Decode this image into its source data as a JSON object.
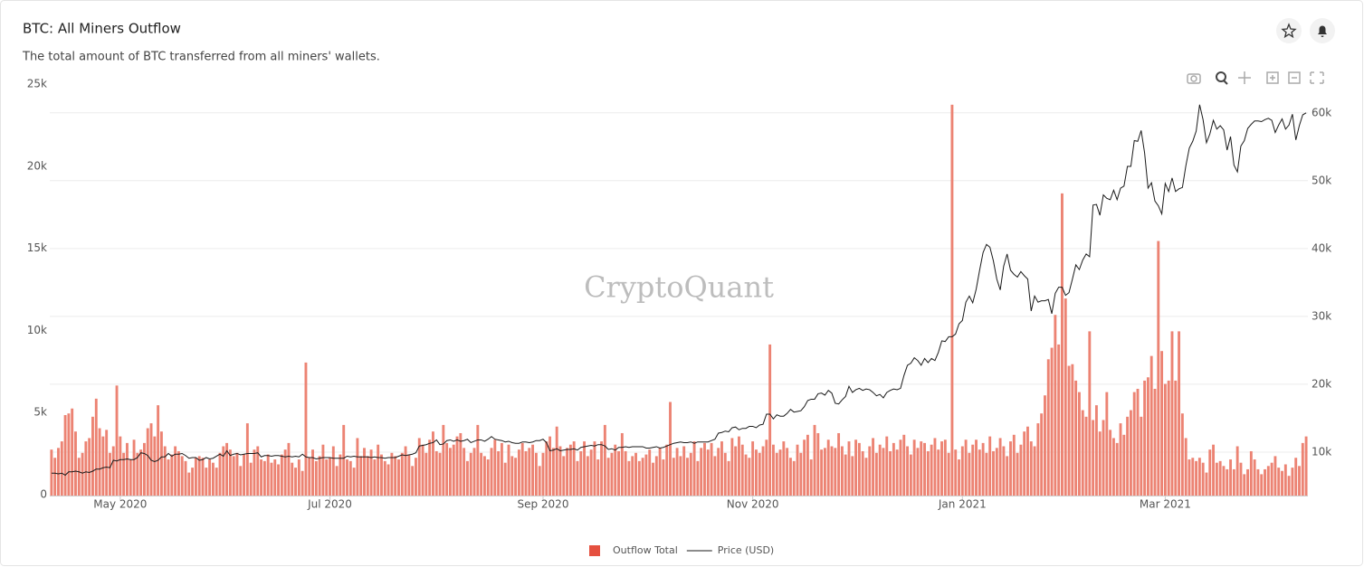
{
  "chart_data": {
    "type": "combo",
    "title": "BTC: All Miners Outflow",
    "subtitle": "The total amount of BTC transferred from all miners' wallets.",
    "watermark": "CryptoQuant",
    "legend": "bottom",
    "grid": true,
    "categories": [
      null,
      null,
      null,
      null,
      null,
      null,
      null,
      null,
      null,
      null,
      null,
      null,
      null,
      null,
      null,
      null,
      null,
      null,
      null,
      null,
      "May 2020",
      null,
      null,
      null,
      null,
      null,
      null,
      null,
      null,
      null,
      null,
      null,
      null,
      null,
      null,
      null,
      null,
      null,
      null,
      null,
      null,
      null,
      null,
      null,
      null,
      null,
      null,
      null,
      null,
      null,
      null,
      null,
      null,
      null,
      null,
      null,
      null,
      null,
      null,
      null,
      null,
      null,
      null,
      null,
      null,
      null,
      null,
      null,
      null,
      null,
      null,
      null,
      null,
      null,
      null,
      null,
      null,
      null,
      null,
      null,
      null,
      "Jul 2020",
      null,
      null,
      null,
      null,
      null,
      null,
      null,
      null,
      null,
      null,
      null,
      null,
      null,
      null,
      null,
      null,
      null,
      null,
      null,
      null,
      null,
      null,
      null,
      null,
      null,
      null,
      null,
      null,
      null,
      null,
      null,
      null,
      null,
      null,
      null,
      null,
      null,
      null,
      null,
      null,
      null,
      null,
      null,
      null,
      null,
      null,
      null,
      null,
      null,
      null,
      null,
      null,
      null,
      null,
      null,
      null,
      null,
      null,
      null,
      null,
      null,
      "Sep 2020",
      null,
      null,
      null,
      null,
      null,
      null,
      null,
      null,
      null,
      null,
      null,
      null,
      null,
      null,
      null,
      null,
      null,
      null,
      null,
      null,
      null,
      null,
      null,
      null,
      null,
      null,
      null,
      null,
      null,
      null,
      null,
      null,
      null,
      null,
      null,
      null,
      null,
      null,
      null,
      null,
      null,
      null,
      null,
      null,
      null,
      null,
      null,
      null,
      null,
      null,
      null,
      null,
      null,
      null,
      null,
      null,
      null,
      null,
      null,
      null,
      "Nov 2020",
      null,
      null,
      null,
      null,
      null,
      null,
      null,
      null,
      null,
      null,
      null,
      null,
      null,
      null,
      null,
      null,
      null,
      null,
      null,
      null,
      null,
      null,
      null,
      null,
      null,
      null,
      null,
      null,
      null,
      null,
      null,
      null,
      null,
      null,
      null,
      null,
      null,
      null,
      null,
      null,
      null,
      null,
      null,
      null,
      null,
      null,
      null,
      null,
      null,
      null,
      null,
      null,
      null,
      null,
      null,
      null,
      null,
      null,
      null,
      null,
      "Jan 2021",
      null,
      null,
      null,
      null,
      null,
      null,
      null,
      null,
      null,
      null,
      null,
      null,
      null,
      null,
      null,
      null,
      null,
      null,
      null,
      null,
      null,
      null,
      null,
      null,
      null,
      null,
      null,
      null,
      null,
      null,
      null,
      null,
      null,
      null,
      null,
      null,
      null,
      null,
      null,
      null,
      null,
      null,
      null,
      null,
      null,
      null,
      null,
      null,
      null,
      null,
      null,
      null,
      null,
      null,
      null,
      null,
      null,
      null,
      "Mar 2021",
      null,
      null,
      null,
      null,
      null,
      null,
      null,
      null,
      null,
      null,
      null,
      null,
      null,
      null,
      null,
      null,
      null,
      null,
      null,
      null,
      null,
      null,
      null,
      null,
      null,
      null,
      null,
      null,
      null,
      null,
      null,
      null,
      null,
      null,
      null,
      null,
      null,
      null,
      null,
      null,
      null
    ],
    "series": [
      {
        "name": "Outflow Total",
        "type": "bar",
        "color": "#ec8373",
        "values": [
          2800,
          2300,
          2900,
          3300,
          4900,
          5000,
          5300,
          3900,
          2300,
          2600,
          3300,
          3500,
          4800,
          5900,
          4100,
          3600,
          4000,
          2600,
          3000,
          6700,
          3600,
          2600,
          3200,
          2200,
          3400,
          2600,
          2800,
          3200,
          4100,
          4400,
          3600,
          5500,
          3900,
          3000,
          2200,
          2500,
          3000,
          2700,
          2400,
          2100,
          1400,
          1700,
          2300,
          2400,
          2300,
          1700,
          2200,
          2000,
          1700,
          2600,
          3000,
          3200,
          2800,
          2400,
          2600,
          1800,
          2500,
          4400,
          2000,
          2800,
          3000,
          2200,
          2100,
          2500,
          2000,
          2200,
          1900,
          2500,
          2800,
          3200,
          2000,
          1700,
          2200,
          1500,
          8100,
          2300,
          2800,
          2100,
          2400,
          3100,
          2200,
          2300,
          3000,
          1800,
          2500,
          4300,
          2200,
          2100,
          1700,
          3500,
          2400,
          2900,
          2400,
          2800,
          2200,
          3100,
          2500,
          2100,
          1900,
          2600,
          2400,
          2200,
          2600,
          3000,
          2500,
          1800,
          2300,
          3500,
          3100,
          2600,
          3400,
          3900,
          2700,
          2600,
          4300,
          3200,
          2900,
          3100,
          3600,
          3800,
          2900,
          2100,
          2600,
          2900,
          4300,
          2600,
          2400,
          2200,
          2900,
          3400,
          2700,
          3200,
          2000,
          3100,
          2400,
          2300,
          2800,
          3200,
          2700,
          2900,
          3100,
          2600,
          1800,
          2600,
          3300,
          3600,
          2900,
          4200,
          3000,
          2400,
          2900,
          3100,
          3300,
          2100,
          2700,
          3300,
          2400,
          2800,
          3300,
          2200,
          3300,
          4300,
          2300,
          2600,
          3100,
          2700,
          3800,
          2700,
          2100,
          2400,
          2600,
          2100,
          2300,
          2500,
          2800,
          2000,
          2400,
          2900,
          2200,
          3100,
          5700,
          2300,
          2900,
          2400,
          3000,
          2300,
          2600,
          3300,
          2100,
          2900,
          3200,
          2800,
          3200,
          2400,
          2900,
          3300,
          2600,
          2100,
          3500,
          3000,
          3600,
          3100,
          2500,
          2300,
          3300,
          2800,
          2600,
          3000,
          3400,
          9200,
          3100,
          2600,
          2800,
          3300,
          2900,
          2300,
          2100,
          3100,
          2600,
          3400,
          3700,
          2200,
          4300,
          3800,
          2800,
          2900,
          3400,
          3000,
          2900,
          3800,
          3000,
          2500,
          3300,
          2400,
          3400,
          3200,
          2700,
          2300,
          3000,
          3500,
          2600,
          3100,
          2900,
          3600,
          2700,
          3200,
          2800,
          3400,
          3700,
          3000,
          2500,
          3400,
          2900,
          3300,
          3200,
          2700,
          3100,
          3500,
          2800,
          3300,
          3400,
          2600,
          23800,
          2800,
          2200,
          3000,
          3400,
          2600,
          3100,
          3400,
          2800,
          3200,
          2600,
          3600,
          2700,
          2900,
          3500,
          3000,
          2400,
          3300,
          3700,
          2600,
          3100,
          3900,
          4200,
          3300,
          3000,
          4400,
          5000,
          6100,
          8300,
          9000,
          11000,
          9200,
          18400,
          12000,
          7900,
          8000,
          7000,
          6300,
          5200,
          4800,
          10000,
          4600,
          5500,
          3900,
          4600,
          6300,
          4000,
          3500,
          3200,
          4400,
          3700,
          4800,
          5200,
          6300,
          6500,
          4800,
          7000,
          7200,
          8500,
          6500,
          15500,
          8800,
          6800,
          7000,
          10000,
          7000,
          10000,
          5000,
          3500,
          2200,
          2300,
          2100,
          2300,
          2000,
          1400,
          2800,
          3100,
          2000,
          2100,
          1800,
          1600,
          2200,
          1600,
          3000,
          2000,
          1300,
          1600,
          2700,
          2200,
          1600,
          1300,
          1600,
          1800,
          2000,
          2400,
          1700,
          1500,
          1900,
          1200,
          1700,
          2300,
          1800,
          3200,
          3600
        ]
      },
      {
        "name": "Price (USD)",
        "type": "line",
        "color": "#1a1a1a",
        "axis": "y2",
        "values": [
          6900,
          6900,
          6800,
          6900,
          6600,
          7100,
          7100,
          7200,
          7100,
          6900,
          7100,
          7000,
          7200,
          7500,
          7500,
          7700,
          7800,
          7700,
          8800,
          8700,
          8900,
          8900,
          9000,
          8900,
          8900,
          9200,
          9900,
          9800,
          9500,
          8800,
          8600,
          8800,
          9300,
          9300,
          9800,
          9400,
          9700,
          9700,
          9800,
          9500,
          9100,
          9200,
          9200,
          8800,
          8900,
          9200,
          9000,
          9100,
          9400,
          9700,
          9400,
          10200,
          9500,
          9700,
          9800,
          9600,
          9700,
          9800,
          9800,
          9800,
          9900,
          9300,
          9500,
          9500,
          9400,
          9500,
          9500,
          9400,
          9300,
          9400,
          9300,
          9400,
          9300,
          9700,
          9300,
          9200,
          9200,
          9000,
          9100,
          9200,
          9200,
          9200,
          9100,
          9100,
          9100,
          9100,
          9400,
          9300,
          9400,
          9300,
          9300,
          9300,
          9300,
          9200,
          9300,
          9200,
          9200,
          9100,
          9200,
          9200,
          9200,
          9400,
          9600,
          9500,
          9600,
          9700,
          9900,
          10900,
          11000,
          11100,
          11300,
          11400,
          11800,
          11100,
          11200,
          11700,
          11800,
          11600,
          11800,
          11600,
          11700,
          11900,
          11400,
          11600,
          11800,
          11800,
          11600,
          11900,
          12300,
          11900,
          11800,
          11700,
          11500,
          11600,
          11400,
          11300,
          11300,
          11500,
          11500,
          11400,
          11500,
          11700,
          11700,
          11900,
          11400,
          10200,
          10300,
          10500,
          10200,
          10300,
          10400,
          10400,
          10500,
          10300,
          10700,
          10800,
          10900,
          11000,
          10900,
          11100,
          11100,
          10900,
          10400,
          10500,
          10300,
          10700,
          10700,
          10800,
          10700,
          10800,
          10800,
          10800,
          10800,
          10600,
          10600,
          10700,
          10800,
          10600,
          10700,
          10900,
          11100,
          11300,
          11400,
          11500,
          11400,
          11400,
          11500,
          11300,
          11500,
          11500,
          11500,
          11500,
          11700,
          11900,
          12800,
          12900,
          13100,
          13000,
          13600,
          13700,
          13300,
          13500,
          13500,
          13800,
          13800,
          13600,
          14000,
          14100,
          15600,
          15600,
          14900,
          15500,
          15300,
          15300,
          15700,
          16300,
          15900,
          16000,
          16100,
          16700,
          17600,
          17800,
          17800,
          18600,
          18700,
          18400,
          19100,
          18700,
          17200,
          17100,
          17700,
          18200,
          19700,
          18800,
          19200,
          19400,
          19100,
          19300,
          19200,
          18800,
          18300,
          18500,
          18000,
          18800,
          19100,
          19300,
          19200,
          19400,
          21300,
          22800,
          23100,
          23900,
          23500,
          22800,
          23800,
          23200,
          23800,
          23500,
          24700,
          26400,
          26300,
          27000,
          27000,
          27400,
          28900,
          29400,
          32100,
          33000,
          32000,
          34000,
          36800,
          39400,
          40600,
          40200,
          38200,
          35500,
          33900,
          37400,
          39200,
          36800,
          36200,
          35800,
          36600,
          36000,
          35500,
          30800,
          33000,
          32100,
          32300,
          32300,
          32500,
          30400,
          33400,
          34300,
          34300,
          33100,
          33500,
          35500,
          37600,
          36900,
          38300,
          39200,
          38800,
          46400,
          46500,
          44900,
          47900,
          47400,
          47200,
          48600,
          47200,
          48900,
          49200,
          52100,
          52100,
          55900,
          55800,
          57400,
          54100,
          48900,
          49700,
          47000,
          46300,
          45100,
          49600,
          48400,
          50400,
          48400,
          48800,
          49000,
          52200,
          54800,
          55800,
          57300,
          61200,
          59000,
          55600,
          56900,
          58900,
          57600,
          58100,
          57500,
          54500,
          56500,
          52300,
          51300,
          55100,
          55900,
          57700,
          58300,
          58800,
          58800,
          58700,
          59000,
          59200,
          58900,
          57100,
          58200,
          59100,
          57600,
          58200,
          59800,
          56000,
          58100,
          59700,
          60000
        ]
      }
    ],
    "ylim": [
      0,
      25000
    ],
    "yticks": [
      0,
      {
        "value": 5000,
        "label": "5k"
      },
      {
        "value": 10000,
        "label": "10k"
      },
      {
        "value": 15000,
        "label": "15k"
      },
      {
        "value": 20000,
        "label": "20k"
      },
      {
        "value": 25000,
        "label": "25k"
      }
    ],
    "y2lim": [
      3600,
      64100
    ],
    "y2ticks": [
      {
        "value": 10000,
        "label": "10k"
      },
      {
        "value": 20000,
        "label": "20k"
      },
      {
        "value": 30000,
        "label": "30k"
      },
      {
        "value": 40000,
        "label": "40k"
      },
      {
        "value": 50000,
        "label": "50k"
      },
      {
        "value": 60000,
        "label": "60k"
      }
    ]
  }
}
